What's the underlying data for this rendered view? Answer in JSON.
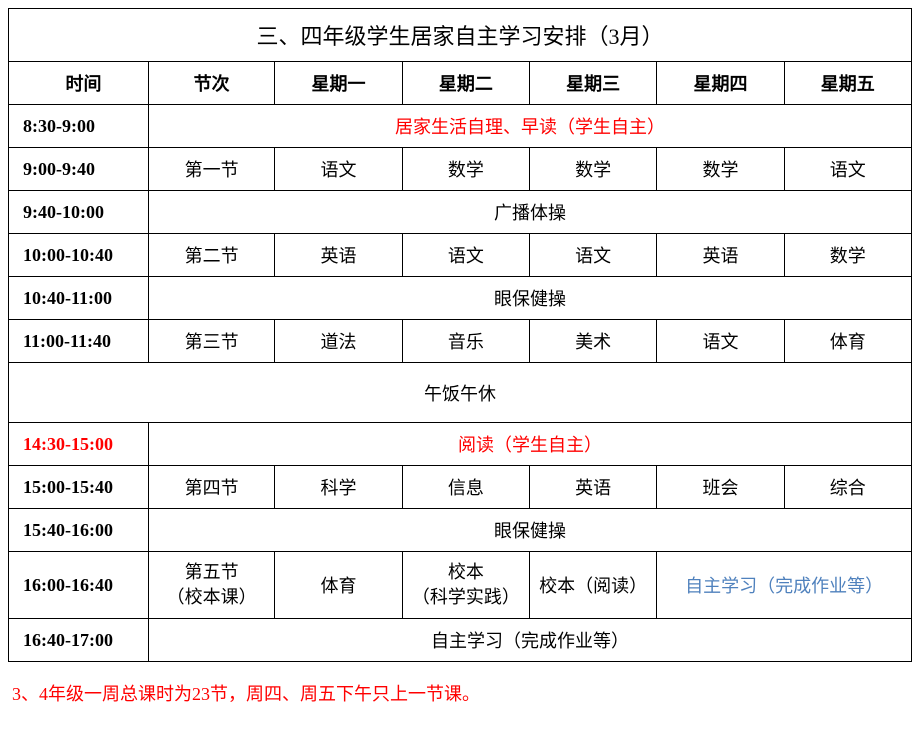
{
  "title": "三、四年级学生居家自主学习安排（3月）",
  "headers": {
    "time": "时间",
    "period": "节次",
    "mon": "星期一",
    "tue": "星期二",
    "wed": "星期三",
    "thu": "星期四",
    "fri": "星期五"
  },
  "rows": {
    "r1": {
      "time": "8:30-9:00",
      "span": "居家生活自理、早读（学生自主）"
    },
    "r2": {
      "time": "9:00-9:40",
      "period": "第一节",
      "mon": "语文",
      "tue": "数学",
      "wed": "数学",
      "thu": "数学",
      "fri": "语文"
    },
    "r3": {
      "time": "9:40-10:00",
      "span": "广播体操"
    },
    "r4": {
      "time": "10:00-10:40",
      "period": "第二节",
      "mon": "英语",
      "tue": "语文",
      "wed": "语文",
      "thu": "英语",
      "fri": "数学"
    },
    "r5": {
      "time": "10:40-11:00",
      "span": "眼保健操"
    },
    "r6": {
      "time": "11:00-11:40",
      "period": "第三节",
      "mon": "道法",
      "tue": "音乐",
      "wed": "美术",
      "thu": "语文",
      "fri": "体育"
    },
    "r7": {
      "span": "午饭午休"
    },
    "r8": {
      "time": "14:30-15:00",
      "span": "阅读（学生自主）"
    },
    "r9": {
      "time": "15:00-15:40",
      "period": "第四节",
      "mon": "科学",
      "tue": "信息",
      "wed": "英语",
      "thu": "班会",
      "fri": "综合"
    },
    "r10": {
      "time": "15:40-16:00",
      "span": "眼保健操"
    },
    "r11": {
      "time": "16:00-16:40",
      "period_l1": "第五节",
      "period_l2": "（校本课）",
      "mon": "体育",
      "tue_l1": "校本",
      "tue_l2": "（科学实践）",
      "wed": "校本（阅读）",
      "thufri": "自主学习（完成作业等）"
    },
    "r12": {
      "time": "16:40-17:00",
      "span": "自主学习（完成作业等）"
    }
  },
  "footer": "3、4年级一周总课时为23节，周四、周五下午只上一节课。",
  "colors": {
    "red": "#ff0000",
    "blue": "#4f81bd",
    "border": "#000000",
    "background": "#ffffff"
  },
  "font": {
    "family": "SimSun",
    "title_size": 22,
    "body_size": 18
  }
}
